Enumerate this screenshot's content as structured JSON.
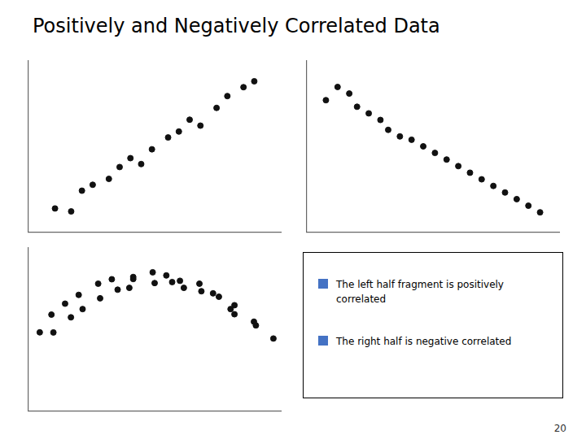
{
  "title": "Positively and Negatively Correlated Data",
  "annotations": [
    {
      "text": [
        "The left half fragment is positively",
        "correlated"
      ],
      "color": "#4472C4"
    },
    {
      "text": [
        "The right half is negative correlated"
      ],
      "color": "#4472C4"
    },
    {
      "text": [
        "20"
      ]
    }
  ],
  "chart_data": [
    {
      "type": "scatter",
      "x": [
        1.0,
        1.3,
        1.5,
        1.7,
        2.0,
        2.2,
        2.4,
        2.6,
        2.8,
        3.1,
        3.3,
        3.5,
        3.7,
        4.0,
        4.2,
        4.5,
        4.7
      ],
      "values": [
        0.8,
        0.7,
        1.4,
        1.6,
        1.8,
        2.2,
        2.5,
        2.3,
        2.8,
        3.2,
        3.4,
        3.8,
        3.6,
        4.2,
        4.6,
        4.9,
        5.1
      ],
      "color": "#111111",
      "xlim": [
        0.5,
        5.2
      ],
      "ylim": [
        0.0,
        5.8
      ],
      "xticks": [],
      "yticks": [],
      "grid": false,
      "tick_labels": false
    },
    {
      "type": "scatter",
      "x": [
        0.5,
        0.8,
        1.1,
        1.3,
        1.6,
        1.9,
        2.1,
        2.4,
        2.7,
        3.0,
        3.3,
        3.6,
        3.9,
        4.2,
        4.5,
        4.8,
        5.1,
        5.4,
        5.7,
        6.0
      ],
      "values": [
        4.8,
        5.2,
        5.0,
        4.6,
        4.4,
        4.2,
        3.9,
        3.7,
        3.6,
        3.4,
        3.2,
        3.0,
        2.8,
        2.6,
        2.4,
        2.2,
        2.0,
        1.8,
        1.6,
        1.4
      ],
      "color": "#111111",
      "xlim": [
        0.0,
        6.5
      ],
      "ylim": [
        0.8,
        6.0
      ],
      "xticks": [],
      "yticks": [],
      "grid": false,
      "tick_labels": false
    },
    {
      "type": "scatter",
      "x": [
        0.5,
        0.85,
        0.8,
        1.3,
        1.15,
        1.6,
        1.5,
        2.05,
        2.0,
        2.5,
        2.35,
        2.8,
        2.9,
        2.9,
        3.45,
        3.4,
        3.9,
        3.75,
        4.2,
        4.1,
        4.65,
        4.6,
        5.1,
        4.95,
        5.4,
        5.5,
        5.5,
        6.05,
        6.0,
        6.5
      ],
      "values": [
        3.0498,
        3.0462,
        3.625,
        3.5362,
        3.9798,
        3.8058,
        4.2642,
        4.155,
        4.6282,
        4.4338,
        4.7718,
        4.4922,
        4.845,
        4.7802,
        4.6478,
        4.9978,
        4.6802,
        4.895,
        4.4922,
        4.7218,
        4.3838,
        4.6282,
        4.205,
        4.3142,
        3.8058,
        3.9298,
        3.6362,
        3.275,
        3.3962,
        2.8498
      ],
      "color": "#111111",
      "xlim": [
        0.2,
        6.7
      ],
      "ylim": [
        0.5,
        5.8
      ],
      "xticks": [],
      "yticks": [],
      "grid": false,
      "tick_labels": false
    }
  ]
}
